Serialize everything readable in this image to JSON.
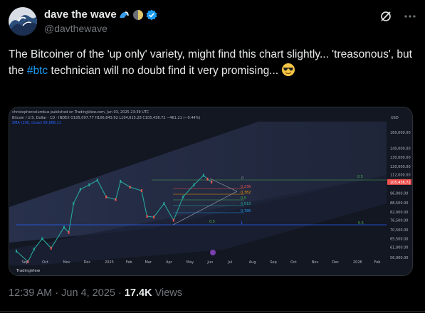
{
  "author": {
    "display_name": "dave the wave",
    "handle": "@davthewave",
    "badge_emojis": [
      "wave-icon",
      "half-moon-icon",
      "verified-badge-icon"
    ]
  },
  "tweet": {
    "text_part1": "The Bitcoiner of the 'up only' variety, might find this chart slightly... 'treasonous', but the ",
    "hashtag": "#btc",
    "text_part2": " technician will no doubt find it very promising...",
    "emoji": "sunglasses-face-icon"
  },
  "chart_header": {
    "published_line": "christophercolumbus published on TradingView.com, Jun 03, 2025 23:39 UTC",
    "symbol_line": "Bitcoin / U.S. Dollar · 1D · INDEX  O105,097.77  H106,843.92  L104,615.28  C105,436.72  −461.21 (−0.44%)",
    "indicator_line": "SMA (200, close)  95,888.11",
    "currency": "USD",
    "logo_text": "TradingView"
  },
  "chart_data": {
    "type": "line",
    "title": "Bitcoin / U.S. Dollar · 1D · INDEX",
    "x_tick_labels": [
      "Sep",
      "Oct",
      "Nov",
      "Dec",
      "2025",
      "Feb",
      "Mar",
      "Apr",
      "May",
      "Jun",
      "Jul",
      "Aug",
      "Sep",
      "Oct",
      "Nov",
      "Dec",
      "2026",
      "Feb"
    ],
    "y_tick_labels": [
      "160,000.00",
      "140,000.00",
      "130,000.00",
      "120,000.00",
      "112,000.00",
      "105,436.72",
      "96,000.00",
      "88,500.00",
      "82,000.00",
      "76,500.00",
      "70,500.00",
      "65,500.00",
      "61,000.00",
      "56,000.00"
    ],
    "yscale": "log",
    "ylim": [
      53000,
      175000
    ],
    "last_price": 105436.72,
    "fib_labels": [
      "0",
      "0.236",
      "0.382",
      "0.5",
      "0.618",
      "0.786",
      "1"
    ],
    "level_labels": [
      "0.5",
      "0.5",
      "0.5"
    ],
    "series": [
      {
        "name": "Bitcoin / U.S. Dollar",
        "x": [
          "2024-08-20",
          "2024-09-06",
          "2024-09-15",
          "2024-09-27",
          "2024-10-10",
          "2024-10-29",
          "2024-11-05",
          "2024-11-12",
          "2024-11-22",
          "2024-12-05",
          "2024-12-17",
          "2024-12-30",
          "2025-01-13",
          "2025-01-20",
          "2025-02-03",
          "2025-02-20",
          "2025-02-28",
          "2025-03-10",
          "2025-03-25",
          "2025-04-08",
          "2025-04-22",
          "2025-05-08",
          "2025-05-22",
          "2025-05-28",
          "2025-06-03"
        ],
        "values": [
          59000,
          54000,
          60000,
          65500,
          60500,
          72000,
          69000,
          88000,
          99000,
          103000,
          107000,
          93000,
          91000,
          106000,
          101000,
          98000,
          79000,
          78500,
          88000,
          76500,
          93000,
          103000,
          111500,
          108000,
          105400
        ]
      }
    ]
  },
  "meta": {
    "time": "12:39 AM",
    "separator": " · ",
    "date": "Jun 4, 2025",
    "views_count": "17.4K",
    "views_label": " Views"
  },
  "colors": {
    "background": "#000000",
    "chart_bg": "#131722",
    "hashtag": "#1d9bf0",
    "verified": "#1d9bf0",
    "price_up": "#26a69a",
    "price_down": "#ef5350",
    "sma": "#2962ff"
  }
}
